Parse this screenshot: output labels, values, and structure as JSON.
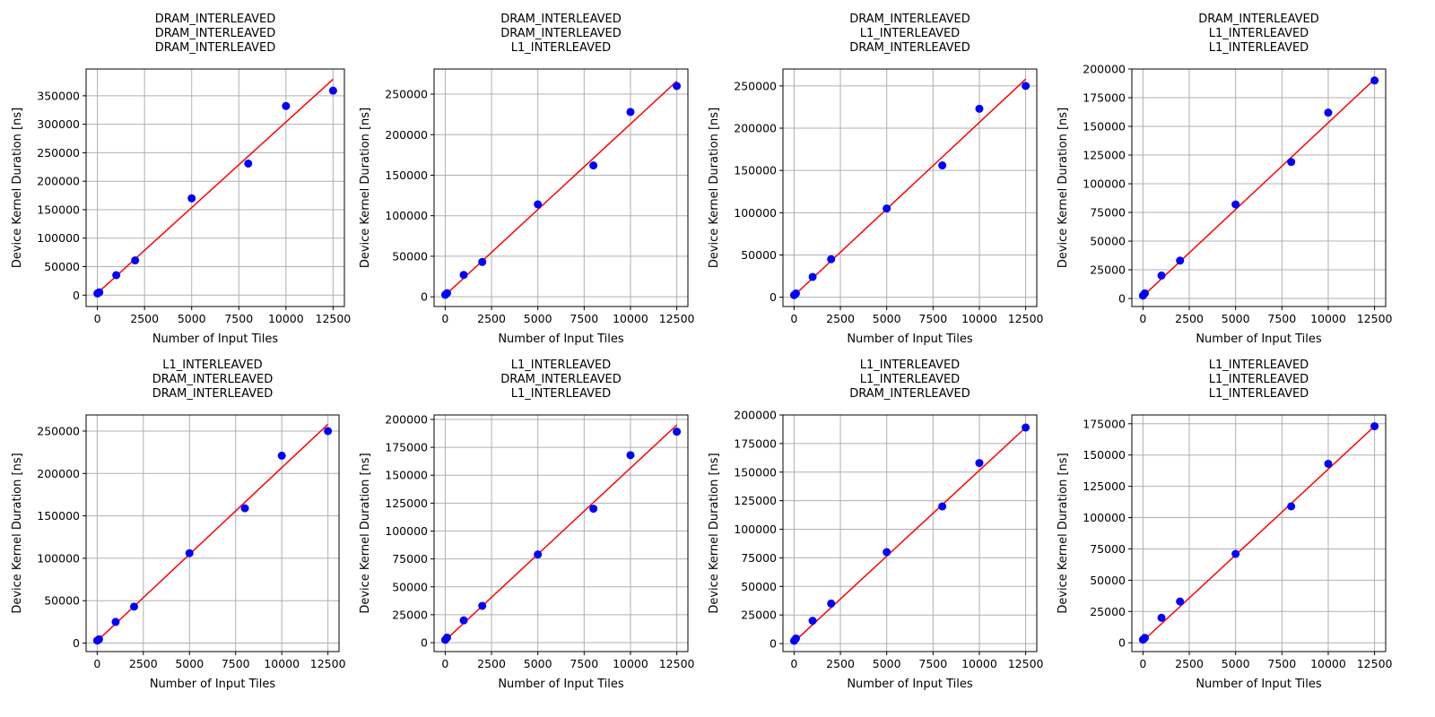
{
  "colors": {
    "points": "#0000ff",
    "fit_line": "#ff0000",
    "grid": "#b0b0b0",
    "axes": "#000000"
  },
  "chart_data": [
    {
      "type": "scatter",
      "title_lines": [
        "DRAM_INTERLEAVED",
        "DRAM_INTERLEAVED",
        "DRAM_INTERLEAVED"
      ],
      "xlabel": "Number of Input Tiles",
      "ylabel": "Device Kernel Duration [ns]",
      "xlim": [
        -600,
        13100
      ],
      "ylim": [
        -20000,
        397000
      ],
      "xticks": [
        0,
        2500,
        5000,
        7500,
        10000,
        12500
      ],
      "yticks": [
        0,
        50000,
        100000,
        150000,
        200000,
        250000,
        300000,
        350000
      ],
      "grid": true,
      "points": [
        [
          1,
          3000
        ],
        [
          100,
          5000
        ],
        [
          1000,
          35000
        ],
        [
          2000,
          61000
        ],
        [
          5000,
          170000
        ],
        [
          8000,
          231000
        ],
        [
          10000,
          332000
        ],
        [
          12500,
          359000
        ]
      ],
      "fit_line": [
        [
          0,
          3500
        ],
        [
          12500,
          379000
        ]
      ]
    },
    {
      "type": "scatter",
      "title_lines": [
        "DRAM_INTERLEAVED",
        "DRAM_INTERLEAVED",
        "L1_INTERLEAVED"
      ],
      "xlabel": "Number of Input Tiles",
      "ylabel": "Device Kernel Duration [ns]",
      "xlim": [
        -600,
        13100
      ],
      "ylim": [
        -12000,
        281000
      ],
      "xticks": [
        0,
        2500,
        5000,
        7500,
        10000,
        12500
      ],
      "yticks": [
        0,
        50000,
        100000,
        150000,
        200000,
        250000
      ],
      "grid": true,
      "points": [
        [
          1,
          2500
        ],
        [
          100,
          4500
        ],
        [
          1000,
          27000
        ],
        [
          2000,
          43000
        ],
        [
          5000,
          114000
        ],
        [
          8000,
          162000
        ],
        [
          10000,
          228000
        ],
        [
          12500,
          260000
        ]
      ],
      "fit_line": [
        [
          0,
          2000
        ],
        [
          12500,
          266000
        ]
      ]
    },
    {
      "type": "scatter",
      "title_lines": [
        "DRAM_INTERLEAVED",
        "L1_INTERLEAVED",
        "DRAM_INTERLEAVED"
      ],
      "xlabel": "Number of Input Tiles",
      "ylabel": "Device Kernel Duration [ns]",
      "xlim": [
        -600,
        13100
      ],
      "ylim": [
        -11000,
        270000
      ],
      "xticks": [
        0,
        2500,
        5000,
        7500,
        10000,
        12500
      ],
      "yticks": [
        0,
        50000,
        100000,
        150000,
        200000,
        250000
      ],
      "grid": true,
      "points": [
        [
          1,
          2500
        ],
        [
          100,
          4500
        ],
        [
          1000,
          24000
        ],
        [
          2000,
          45000
        ],
        [
          5000,
          105000
        ],
        [
          8000,
          156000
        ],
        [
          10000,
          223000
        ],
        [
          12500,
          250000
        ]
      ],
      "fit_line": [
        [
          0,
          2000
        ],
        [
          12500,
          258000
        ]
      ]
    },
    {
      "type": "scatter",
      "title_lines": [
        "DRAM_INTERLEAVED",
        "L1_INTERLEAVED",
        "L1_INTERLEAVED"
      ],
      "xlabel": "Number of Input Tiles",
      "ylabel": "Device Kernel Duration [ns]",
      "xlim": [
        -600,
        13100
      ],
      "ylim": [
        -7000,
        200000
      ],
      "xticks": [
        0,
        2500,
        5000,
        7500,
        10000,
        12500
      ],
      "yticks": [
        0,
        25000,
        50000,
        75000,
        100000,
        125000,
        150000,
        175000,
        200000
      ],
      "grid": true,
      "points": [
        [
          1,
          2500
        ],
        [
          100,
          4500
        ],
        [
          1000,
          20000
        ],
        [
          2000,
          33000
        ],
        [
          5000,
          82000
        ],
        [
          8000,
          119000
        ],
        [
          10000,
          162000
        ],
        [
          12500,
          190000
        ]
      ],
      "fit_line": [
        [
          0,
          2000
        ],
        [
          12500,
          191000
        ]
      ]
    },
    {
      "type": "scatter",
      "title_lines": [
        "L1_INTERLEAVED",
        "DRAM_INTERLEAVED",
        "DRAM_INTERLEAVED"
      ],
      "xlabel": "Number of Input Tiles",
      "ylabel": "Device Kernel Duration [ns]",
      "xlim": [
        -600,
        13100
      ],
      "ylim": [
        -10000,
        269000
      ],
      "xticks": [
        0,
        2500,
        5000,
        7500,
        10000,
        12500
      ],
      "yticks": [
        0,
        50000,
        100000,
        150000,
        200000,
        250000
      ],
      "grid": true,
      "points": [
        [
          1,
          3000
        ],
        [
          100,
          4500
        ],
        [
          1000,
          25000
        ],
        [
          2000,
          43000
        ],
        [
          5000,
          106000
        ],
        [
          8000,
          159000
        ],
        [
          10000,
          221000
        ],
        [
          12500,
          250000
        ]
      ],
      "fit_line": [
        [
          0,
          2500
        ],
        [
          12500,
          258000
        ]
      ]
    },
    {
      "type": "scatter",
      "title_lines": [
        "L1_INTERLEAVED",
        "DRAM_INTERLEAVED",
        "L1_INTERLEAVED"
      ],
      "xlabel": "Number of Input Tiles",
      "ylabel": "Device Kernel Duration [ns]",
      "xlim": [
        -600,
        13100
      ],
      "ylim": [
        -8000,
        204000
      ],
      "xticks": [
        0,
        2500,
        5000,
        7500,
        10000,
        12500
      ],
      "yticks": [
        0,
        25000,
        50000,
        75000,
        100000,
        125000,
        150000,
        175000,
        200000
      ],
      "grid": true,
      "points": [
        [
          1,
          2500
        ],
        [
          100,
          4500
        ],
        [
          1000,
          20000
        ],
        [
          2000,
          33000
        ],
        [
          5000,
          79000
        ],
        [
          8000,
          120000
        ],
        [
          10000,
          168000
        ],
        [
          12500,
          189000
        ]
      ],
      "fit_line": [
        [
          0,
          2000
        ],
        [
          12500,
          195000
        ]
      ]
    },
    {
      "type": "scatter",
      "title_lines": [
        "L1_INTERLEAVED",
        "L1_INTERLEAVED",
        "DRAM_INTERLEAVED"
      ],
      "xlabel": "Number of Input Tiles",
      "ylabel": "Device Kernel Duration [ns]",
      "xlim": [
        -600,
        13100
      ],
      "ylim": [
        -7000,
        200000
      ],
      "xticks": [
        0,
        2500,
        5000,
        7500,
        10000,
        12500
      ],
      "yticks": [
        0,
        25000,
        50000,
        75000,
        100000,
        125000,
        150000,
        175000,
        200000
      ],
      "grid": true,
      "points": [
        [
          1,
          2500
        ],
        [
          100,
          4500
        ],
        [
          1000,
          20000
        ],
        [
          2000,
          35000
        ],
        [
          5000,
          80000
        ],
        [
          8000,
          120000
        ],
        [
          10000,
          158000
        ],
        [
          12500,
          189000
        ]
      ],
      "fit_line": [
        [
          0,
          1500
        ],
        [
          12500,
          189000
        ]
      ]
    },
    {
      "type": "scatter",
      "title_lines": [
        "L1_INTERLEAVED",
        "L1_INTERLEAVED",
        "L1_INTERLEAVED"
      ],
      "xlabel": "Number of Input Tiles",
      "ylabel": "Device Kernel Duration [ns]",
      "xlim": [
        -600,
        13100
      ],
      "ylim": [
        -7000,
        182000
      ],
      "xticks": [
        0,
        2500,
        5000,
        7500,
        10000,
        12500
      ],
      "yticks": [
        0,
        25000,
        50000,
        75000,
        100000,
        125000,
        150000,
        175000
      ],
      "grid": true,
      "points": [
        [
          1,
          2500
        ],
        [
          100,
          4000
        ],
        [
          1000,
          20000
        ],
        [
          2000,
          33000
        ],
        [
          5000,
          71000
        ],
        [
          8000,
          109000
        ],
        [
          10000,
          143000
        ],
        [
          12500,
          173000
        ]
      ],
      "fit_line": [
        [
          0,
          1500
        ],
        [
          12500,
          173000
        ]
      ]
    }
  ]
}
